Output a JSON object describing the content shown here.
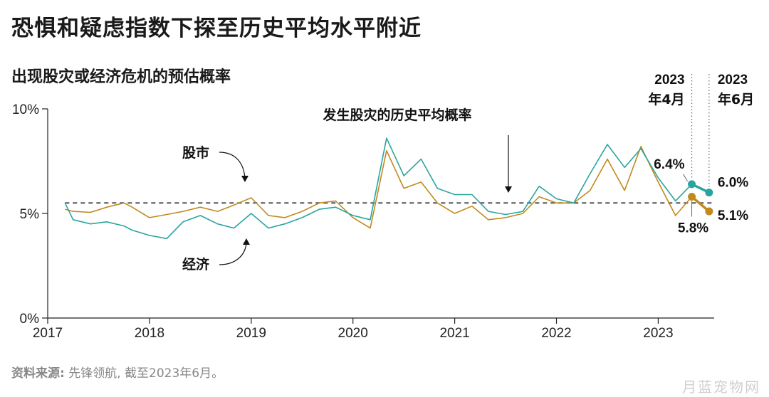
{
  "title": "恐惧和疑虑指数下探至历史平均水平附近",
  "subtitle": "出现股灾或经济危机的预估概率",
  "source": {
    "label": "资料来源:",
    "text": " 先锋领航, 截至2023年6月。"
  },
  "watermark": "月蓝宠物网",
  "colors": {
    "economy": "#2aa49f",
    "market": "#c08a1e",
    "average": "#555555"
  },
  "chart_data": {
    "type": "line",
    "ylabel": "",
    "ylim": [
      0,
      10
    ],
    "yticks": [
      "0%",
      "5%",
      "10%"
    ],
    "xlim": [
      2017,
      2023.55
    ],
    "xticks": [
      "2017",
      "2018",
      "2019",
      "2020",
      "2021",
      "2022",
      "2023"
    ],
    "average_line": {
      "value": 5.5,
      "label": "发生股灾的历史平均概率"
    },
    "series": [
      {
        "name": "股市",
        "x": [
          2017.17,
          2017.25,
          2017.42,
          2017.58,
          2017.75,
          2017.83,
          2018.0,
          2018.17,
          2018.33,
          2018.5,
          2018.67,
          2018.83,
          2019.0,
          2019.17,
          2019.33,
          2019.5,
          2019.67,
          2019.83,
          2020.0,
          2020.17,
          2020.33,
          2020.5,
          2020.67,
          2020.83,
          2021.0,
          2021.17,
          2021.33,
          2021.5,
          2021.67,
          2021.83,
          2022.0,
          2022.17,
          2022.33,
          2022.5,
          2022.67,
          2022.83,
          2023.0,
          2023.17,
          2023.33,
          2023.5
        ],
        "values": [
          5.2,
          5.1,
          5.05,
          5.3,
          5.5,
          5.3,
          4.8,
          4.95,
          5.1,
          5.3,
          5.1,
          5.4,
          5.75,
          4.9,
          4.8,
          5.1,
          5.5,
          5.6,
          4.8,
          4.3,
          8.0,
          6.2,
          6.5,
          5.5,
          5.0,
          5.35,
          4.7,
          4.8,
          5.0,
          5.8,
          5.5,
          5.5,
          6.1,
          7.6,
          6.1,
          8.2,
          6.5,
          4.9,
          5.8,
          5.1
        ]
      },
      {
        "name": "经济",
        "x": [
          2017.17,
          2017.25,
          2017.42,
          2017.58,
          2017.75,
          2017.83,
          2018.0,
          2018.17,
          2018.33,
          2018.5,
          2018.67,
          2018.83,
          2019.0,
          2019.17,
          2019.33,
          2019.5,
          2019.67,
          2019.83,
          2020.0,
          2020.17,
          2020.33,
          2020.5,
          2020.67,
          2020.83,
          2021.0,
          2021.17,
          2021.33,
          2021.5,
          2021.67,
          2021.83,
          2022.0,
          2022.17,
          2022.33,
          2022.5,
          2022.67,
          2022.83,
          2023.0,
          2023.17,
          2023.33,
          2023.5
        ],
        "values": [
          5.5,
          4.7,
          4.5,
          4.6,
          4.4,
          4.2,
          3.95,
          3.8,
          4.6,
          4.9,
          4.5,
          4.3,
          5.0,
          4.3,
          4.5,
          4.8,
          5.2,
          5.3,
          4.9,
          4.7,
          8.6,
          6.8,
          7.6,
          6.2,
          5.9,
          5.9,
          5.1,
          4.95,
          5.1,
          6.3,
          5.7,
          5.5,
          6.9,
          8.3,
          7.2,
          8.1,
          6.7,
          5.6,
          6.4,
          6.0
        ]
      }
    ],
    "annotations": [
      {
        "text": "股市",
        "target": "股市"
      },
      {
        "text": "经济",
        "target": "经济"
      }
    ],
    "period_markers": [
      {
        "year": "2023",
        "month": "年4月"
      },
      {
        "year": "2023",
        "month": "年6月"
      }
    ],
    "end_labels": {
      "economy_apr": "6.4%",
      "economy_jun": "6.0%",
      "market_apr": "5.8%",
      "market_jun": "5.1%"
    }
  }
}
